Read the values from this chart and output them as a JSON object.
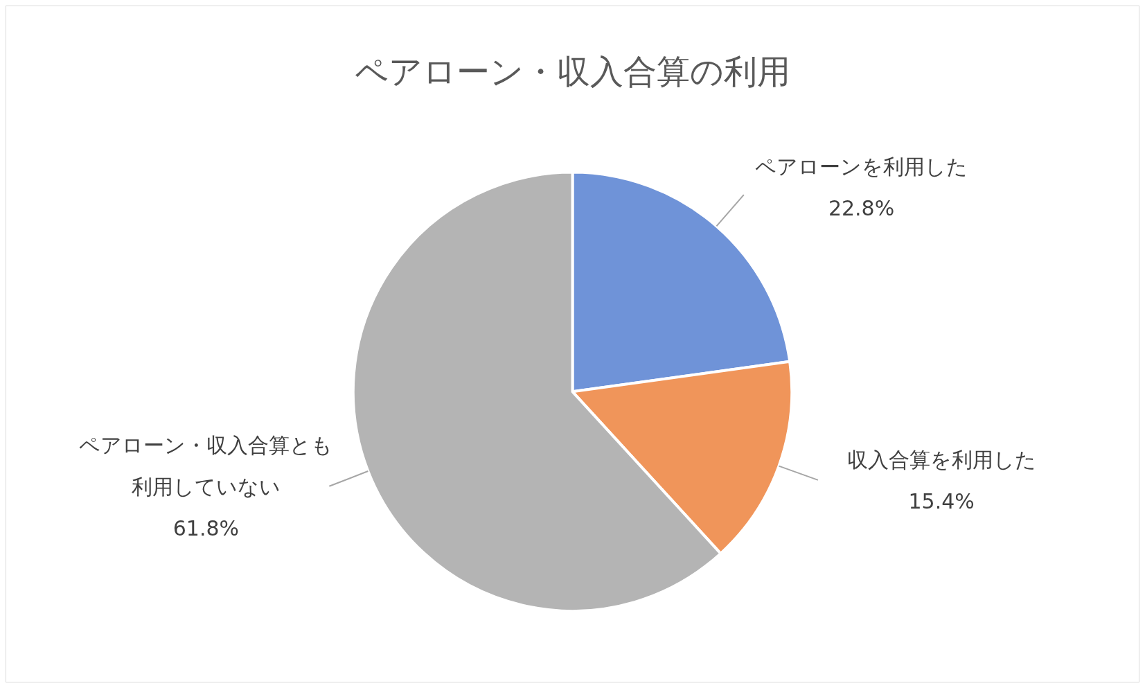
{
  "chart_data": {
    "type": "pie",
    "title": "ペアローン・収入合算の利用",
    "categories": [
      "ペアローンを利用した",
      "収入合算を利用した",
      "ペアローン・収入合算とも利用していない"
    ],
    "values": [
      22.8,
      15.4,
      61.8
    ],
    "colors": [
      "#6f93d8",
      "#f0955a",
      "#b4b4b4"
    ],
    "value_labels": [
      "22.8%",
      "15.4%",
      "61.8%"
    ],
    "legend": false
  }
}
